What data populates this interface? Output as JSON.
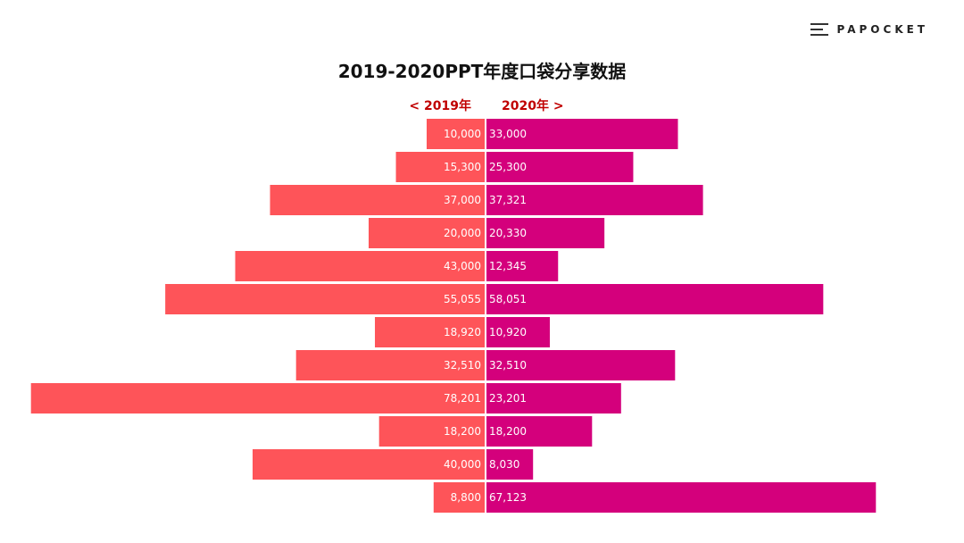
{
  "brand": {
    "name": "PAPOCKET",
    "icon": "menu-icon"
  },
  "chart_data": {
    "type": "bar",
    "title": "2019-2020PPT年度口袋分享数据",
    "orientation": "horizontal-butterfly",
    "series": [
      {
        "name": "< 2019年",
        "color": "#fe5459",
        "values": [
          10000,
          15300,
          37000,
          20000,
          43000,
          55055,
          18920,
          32510,
          78201,
          18200,
          40000,
          8800
        ],
        "labels": [
          "10,000",
          "15,300",
          "37,000",
          "20,000",
          "43,000",
          "55,055",
          "18,920",
          "32,510",
          "78,201",
          "18,200",
          "40,000",
          "8,800"
        ]
      },
      {
        "name": "2020年 >",
        "color": "#d4007c",
        "values": [
          33000,
          25300,
          37321,
          20330,
          12345,
          58051,
          10920,
          32510,
          23201,
          18200,
          8030,
          67123
        ],
        "labels": [
          "33,000",
          "25,300",
          "37,321",
          "20,330",
          "12,345",
          "58,051",
          "10,920",
          "32,510",
          "23,201",
          "18,200",
          "8,030",
          "67,123"
        ]
      }
    ],
    "grid": false,
    "legend": "top-center"
  }
}
